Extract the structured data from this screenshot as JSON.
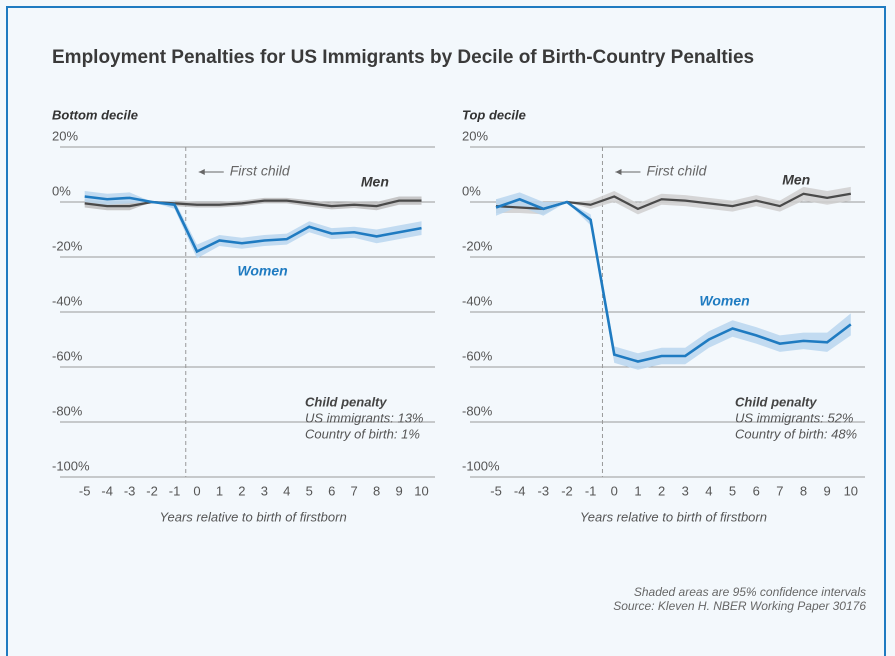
{
  "title": "Employment Penalties for US Immigrants by Decile of Birth-Country Penalties",
  "notes": [
    "Shaded areas are 95% confidence intervals",
    "Source: Kleven H. NBER Working Paper 30176"
  ],
  "chart_data": [
    {
      "type": "line",
      "subtitle": "Bottom decile",
      "xlabel": "Years relative to birth of firstborn",
      "x": [
        -5,
        -4,
        -3,
        -2,
        -1,
        0,
        1,
        2,
        3,
        4,
        5,
        6,
        7,
        8,
        9,
        10
      ],
      "xlim": [
        -6.1,
        10.6
      ],
      "xticks": [
        -5,
        -4,
        -3,
        -2,
        -1,
        0,
        1,
        2,
        3,
        4,
        5,
        6,
        7,
        8,
        9,
        10
      ],
      "ylim": [
        -100,
        20
      ],
      "yticks": [
        {
          "value": 20,
          "label": "20%"
        },
        {
          "value": 0,
          "label": "0%"
        },
        {
          "value": -20,
          "label": "-20%"
        },
        {
          "value": -40,
          "label": "-40%"
        },
        {
          "value": -60,
          "label": "-60%"
        },
        {
          "value": -80,
          "label": "-80%"
        },
        {
          "value": -100,
          "label": "-100%"
        }
      ],
      "grid": true,
      "event": {
        "x": -0.5,
        "label": "First child"
      },
      "penalty": {
        "title": "Child penalty",
        "lines": [
          "US immigrants: 13%",
          "Country of birth: 1%"
        ]
      },
      "series": [
        {
          "name": "Men",
          "color": "#4a4a4a",
          "band_color": "#bdbdbd",
          "values": [
            -0.5,
            -1.5,
            -1.5,
            0,
            -0.5,
            -1,
            -1,
            -0.5,
            0.5,
            0.5,
            -0.5,
            -1.5,
            -1,
            -1.5,
            0.5,
            0.5
          ],
          "ci": [
            1.5,
            1.5,
            1.5,
            0,
            1,
            1,
            1,
            1,
            1,
            1,
            1.2,
            1.2,
            1.2,
            1.5,
            1.5,
            1.5
          ]
        },
        {
          "name": "Women",
          "color": "#1f7bc1",
          "band_color": "#b9d6ee",
          "values": [
            2,
            1,
            1.5,
            0,
            -1,
            -18,
            -14,
            -15,
            -14,
            -13.5,
            -9,
            -11.5,
            -11,
            -12.5,
            -11,
            -9.5
          ],
          "ci": [
            2,
            2,
            2,
            0,
            1.5,
            2.5,
            2,
            2,
            2,
            2,
            2,
            2,
            2,
            2.5,
            2.5,
            2.5
          ]
        }
      ]
    },
    {
      "type": "line",
      "subtitle": "Top decile",
      "xlabel": "Years relative to birth of firstborn",
      "x": [
        -5,
        -4,
        -3,
        -2,
        -1,
        0,
        1,
        2,
        3,
        4,
        5,
        6,
        7,
        8,
        9,
        10
      ],
      "xlim": [
        -6.1,
        10.6
      ],
      "xticks": [
        -5,
        -4,
        -3,
        -2,
        -1,
        0,
        1,
        2,
        3,
        4,
        5,
        6,
        7,
        8,
        9,
        10
      ],
      "ylim": [
        -100,
        20
      ],
      "yticks": [
        {
          "value": 20,
          "label": "20%"
        },
        {
          "value": 0,
          "label": "0%"
        },
        {
          "value": -20,
          "label": "-20%"
        },
        {
          "value": -40,
          "label": "-40%"
        },
        {
          "value": -60,
          "label": "-60%"
        },
        {
          "value": -80,
          "label": "-80%"
        },
        {
          "value": -100,
          "label": "-100%"
        }
      ],
      "grid": true,
      "event": {
        "x": -0.5,
        "label": "First child"
      },
      "penalty": {
        "title": "Child penalty",
        "lines": [
          "US immigrants: 52%",
          "Country of birth: 48%"
        ]
      },
      "series": [
        {
          "name": "Men",
          "color": "#4a4a4a",
          "band_color": "#cfcfcf",
          "values": [
            -1.5,
            -2,
            -2.5,
            0,
            -1,
            2,
            -2.5,
            1,
            0.5,
            -0.5,
            -1.5,
            0.5,
            -1.5,
            3,
            1.5,
            3
          ],
          "ci": [
            2.5,
            2,
            2,
            0,
            1.5,
            2,
            2,
            2,
            2,
            2,
            2,
            2,
            2,
            2.5,
            2.5,
            2.5
          ]
        },
        {
          "name": "Women",
          "color": "#1f7bc1",
          "band_color": "#b9d6ee",
          "values": [
            -2,
            1,
            -2.5,
            0,
            -6.5,
            -55.5,
            -58,
            -56,
            -56,
            -50,
            -46,
            -48.5,
            -51.5,
            -50.5,
            -51,
            -44.5
          ],
          "ci": [
            3,
            2.5,
            2.5,
            0,
            2,
            3,
            3,
            3,
            3,
            3,
            3,
            3,
            3,
            3,
            3.5,
            4
          ]
        }
      ]
    }
  ]
}
